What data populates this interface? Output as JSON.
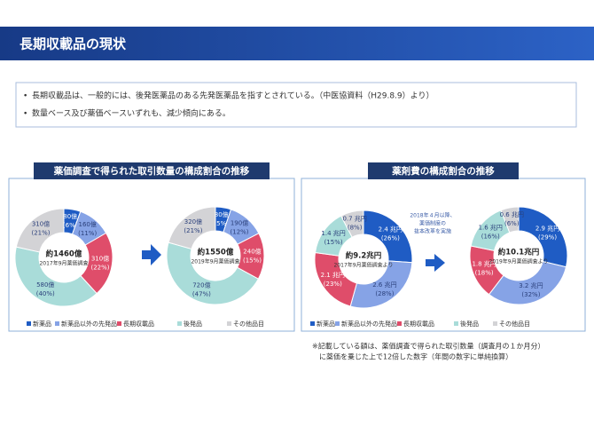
{
  "header": {
    "title": "長期収載品の現状"
  },
  "bullets": [
    "長期収載品は、一般的には、後発医薬品のある先発医薬品を指すとされている。（中医協資料（H29.8.9）より）",
    "数量ベース及び薬価ベースいずれも、減少傾向にある。"
  ],
  "panels": [
    {
      "title": "薬価調査で得られた取引数量の構成割合の推移",
      "legend": {
        "categories": [
          "新薬品",
          "新薬品以外の先発品",
          "長期収載品",
          "後発品",
          "その他品目"
        ],
        "colors": [
          "#1f5cc4",
          "#86a3e6",
          "#df4d6a",
          "#a9dcd9",
          "#d3d3d6"
        ]
      },
      "charts": [
        {
          "type": "pie",
          "total_label": "約1460億",
          "subtitle": "2017年9月薬価調査",
          "values": [
            80,
            160,
            310,
            580,
            310
          ],
          "value_labels": [
            "80億",
            "160億",
            "310億",
            "580億",
            "310億"
          ],
          "percents": [
            6,
            11,
            22,
            40,
            21
          ],
          "percent_labels": [
            "(6%)",
            "(11%)",
            "(22%)",
            "(40%)",
            "(21%)"
          ]
        },
        {
          "type": "pie",
          "total_label": "約1550億",
          "subtitle": "2019年9月薬価調査",
          "values": [
            80,
            190,
            240,
            720,
            320
          ],
          "value_labels": [
            "80億",
            "190億",
            "240億",
            "720億",
            "320億"
          ],
          "percents": [
            5,
            12,
            15,
            47,
            21
          ],
          "percent_labels": [
            "(5%)",
            "(12%)",
            "(15%)",
            "(47%)",
            "(21%)"
          ]
        }
      ]
    },
    {
      "title": "薬剤費の構成割合の推移",
      "legend": {
        "categories": [
          "新薬品",
          "新薬品以外の先発品",
          "長期収載品",
          "後発品",
          "その他品目"
        ],
        "colors": [
          "#1f5cc4",
          "#86a3e6",
          "#df4d6a",
          "#a9dcd9",
          "#d3d3d6"
        ]
      },
      "charts": [
        {
          "type": "pie",
          "total_label": "約9.2兆円",
          "subtitle": "2017年9月薬価調査より",
          "values": [
            2.4,
            2.6,
            2.1,
            1.4,
            0.7
          ],
          "value_labels": [
            "2.4 兆円",
            "2.6 兆円",
            "2.1 兆円",
            "1.4 兆円",
            "0.7 兆円"
          ],
          "percents": [
            26,
            28,
            23,
            15,
            8
          ],
          "percent_labels": [
            "(26%)",
            "(28%)",
            "(23%)",
            "(15%)",
            "(8%)"
          ]
        },
        {
          "type": "pie",
          "total_label": "約10.1兆円",
          "subtitle": "2019年9月薬価調査より",
          "values": [
            2.9,
            3.2,
            1.8,
            1.6,
            0.6
          ],
          "value_labels": [
            "2.9 兆円",
            "3.2 兆円",
            "1.8 兆円",
            "1.6 兆円",
            "0.6 兆円"
          ],
          "percents": [
            29,
            32,
            18,
            16,
            6
          ],
          "percent_labels": [
            "(29%)",
            "(32%)",
            "(18%)",
            "(16%)",
            "(6%)"
          ]
        }
      ],
      "annotation_lines": [
        "2018年４月以降、",
        "薬価制度の",
        "抜本改革を実施"
      ],
      "notes": [
        "※記載している額は、薬価調査で得られた取引数量（調査月の１か月分）",
        "に薬価を乗じた上で12倍した数字（年間の数字に単純換算）"
      ]
    }
  ]
}
